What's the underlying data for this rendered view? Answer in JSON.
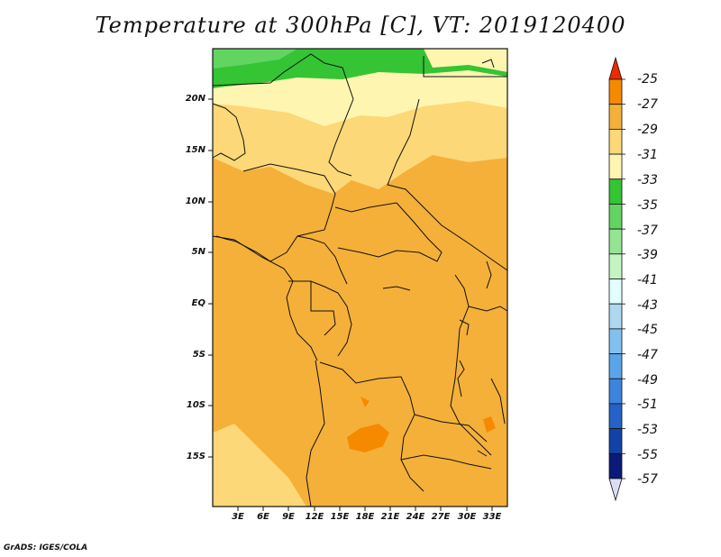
{
  "title": "Temperature at 300hPa [C], VT: 2019120400",
  "footer": "GrADS: IGES/COLA",
  "lat_labels": [
    "20N",
    "15N",
    "10N",
    "5N",
    "EQ",
    "5S",
    "10S",
    "15S"
  ],
  "lon_labels": [
    "3E",
    "6E",
    "9E",
    "12E",
    "15E",
    "18E",
    "21E",
    "24E",
    "27E",
    "30E",
    "33E"
  ],
  "colorbar": {
    "labels": [
      "-25",
      "-27",
      "-29",
      "-31",
      "-33",
      "-35",
      "-37",
      "-39",
      "-41",
      "-43",
      "-45",
      "-47",
      "-49",
      "-51",
      "-53",
      "-55",
      "-57"
    ],
    "colors": [
      "#ee5a00",
      "#f58a00",
      "#f5b03a",
      "#fcd878",
      "#fef5b0",
      "#34c434",
      "#62d462",
      "#94e494",
      "#c4f4c4",
      "#e2fefe",
      "#aed8f0",
      "#82c0ee",
      "#5aa4ea",
      "#3c84de",
      "#2462c8",
      "#1242a8",
      "#0a1a78",
      "#dcdcf4"
    ]
  },
  "legend_colors": {
    "top_triangle": "#ee2a00",
    "bottom_triangle": "#dcdcf4"
  }
}
